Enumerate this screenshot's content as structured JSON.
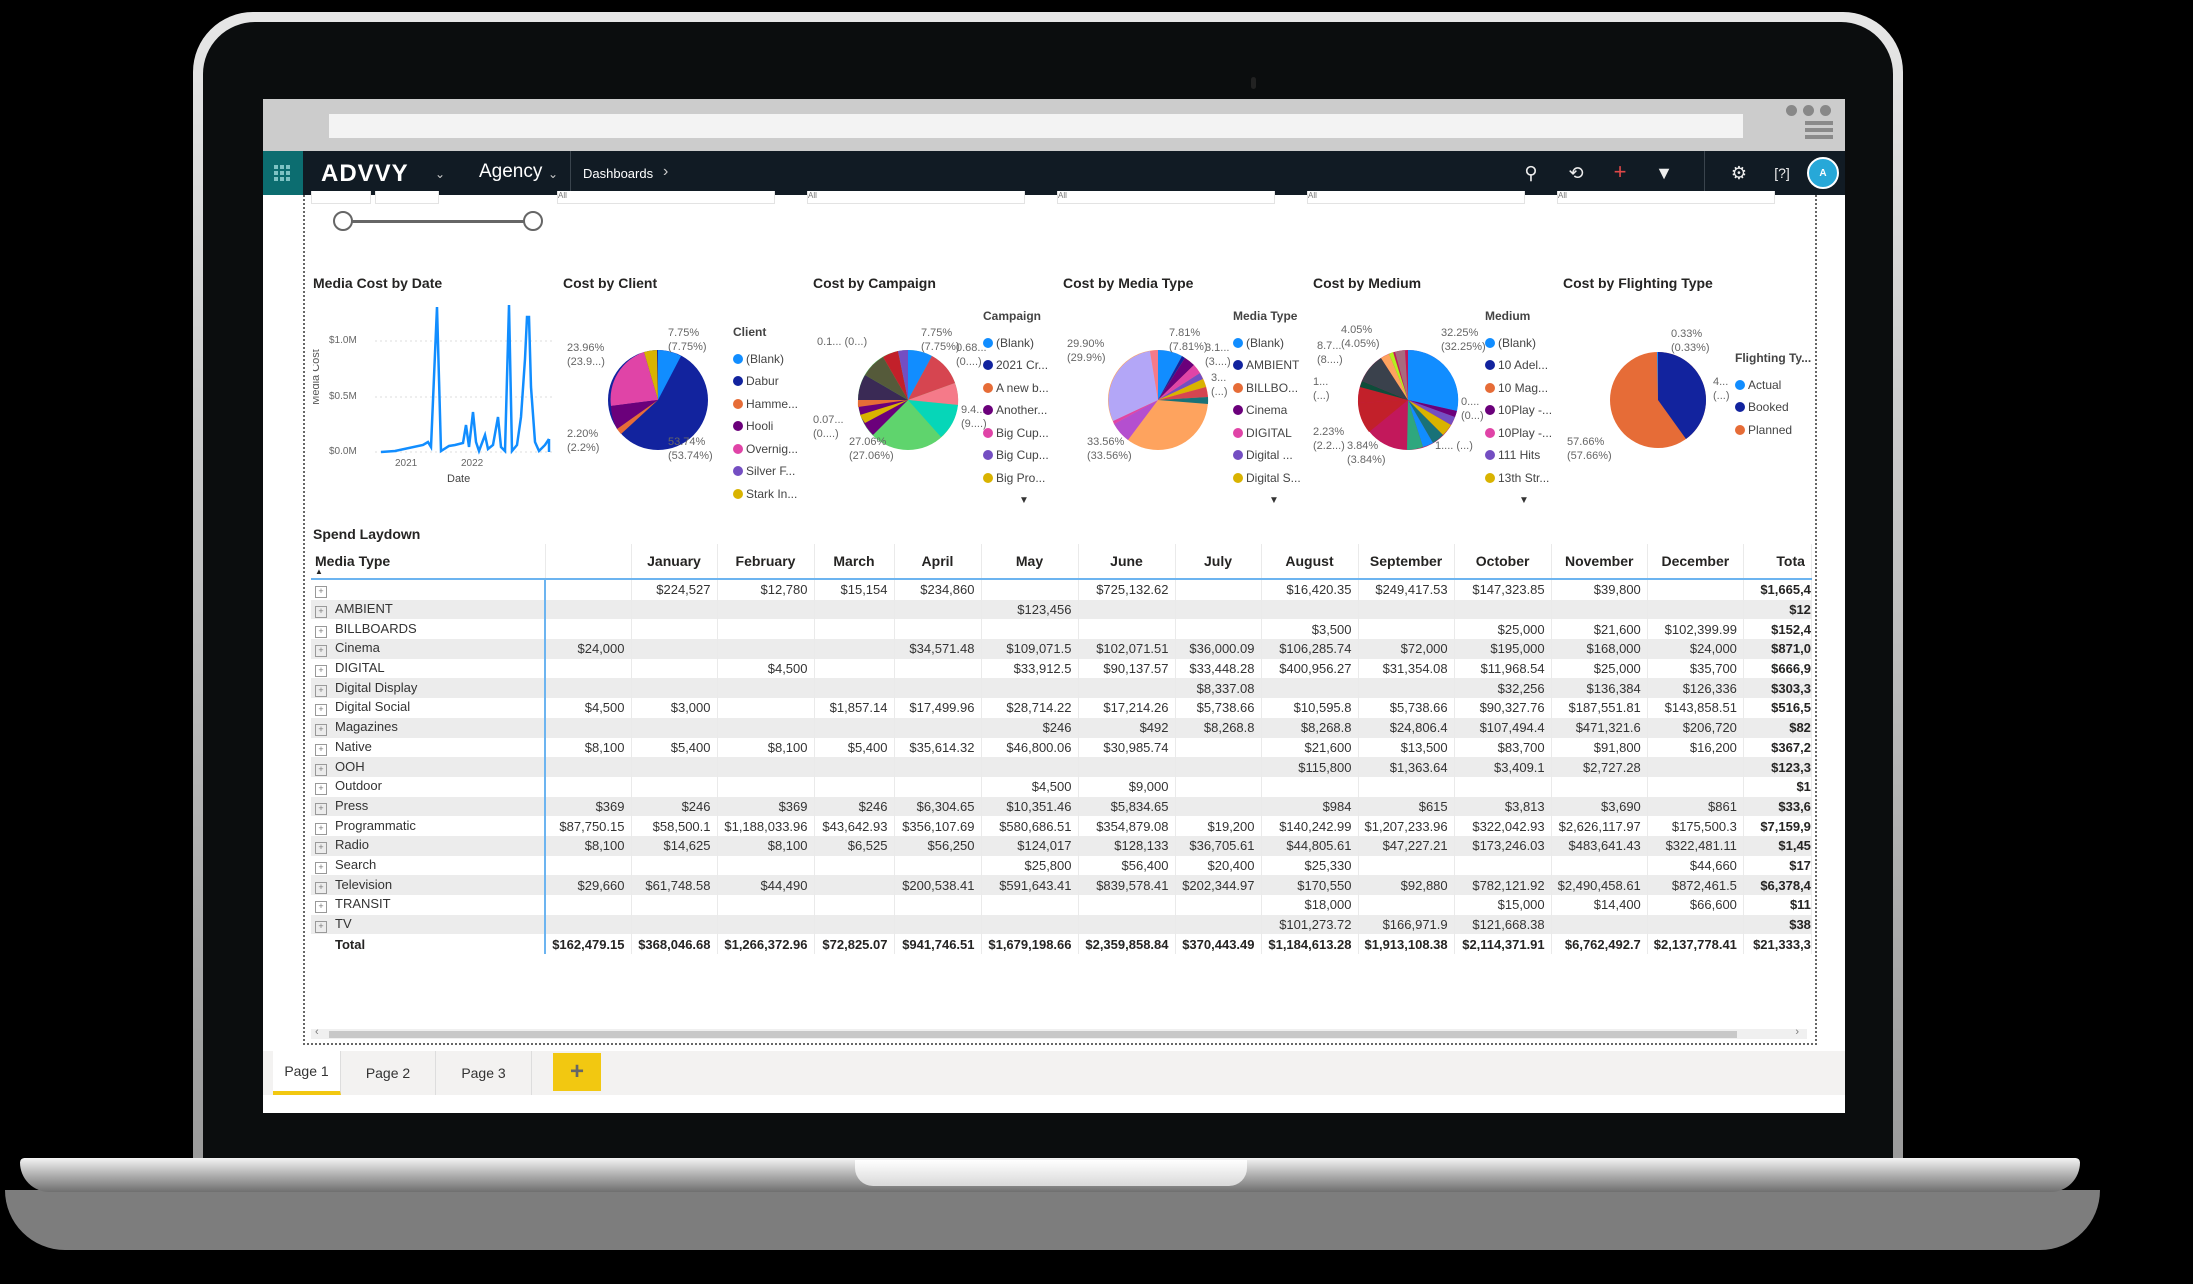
{
  "app": {
    "brand": "ADVVY",
    "org": "Agency",
    "breadcrumb": "Dashboards",
    "icons": [
      "search-icon",
      "history-icon",
      "add-icon",
      "filter-icon",
      "settings-icon",
      "help-icon"
    ],
    "avatar_initial": "A",
    "accent": "#0c6d70",
    "tab_accent": "#f2c811"
  },
  "slicers": {
    "placeholder": "All"
  },
  "charts": {
    "line": {
      "title": "Media Cost by Date"
    },
    "client": {
      "title": "Cost by Client",
      "legend_title": "Client"
    },
    "campaign": {
      "title": "Cost by Campaign",
      "legend_title": "Campaign"
    },
    "mediatype": {
      "title": "Cost by Media Type",
      "legend_title": "Media Type"
    },
    "medium": {
      "title": "Cost by Medium",
      "legend_title": "Medium"
    },
    "flighting": {
      "title": "Cost by Flighting Type",
      "legend_title": "Flighting Ty..."
    }
  },
  "chart_data": [
    {
      "type": "line",
      "title": "Media Cost by Date",
      "xlabel": "Date",
      "ylabel": "Media Cost",
      "y_ticks": [
        "$0.0M",
        "$0.5M",
        "$1.0M"
      ],
      "x_ticks": [
        "2021",
        "2022"
      ],
      "ylim": [
        0,
        1.4
      ],
      "grid": true,
      "series": [
        {
          "name": "Media Cost",
          "color": "#118dff",
          "points_approx_millions": [
            0.01,
            0.02,
            0.05,
            0.1,
            1.25,
            0.02,
            0.05,
            0.05,
            0.35,
            0.05,
            0.1,
            0.3,
            1.35,
            0.02,
            1.3,
            0.6,
            0.05,
            0.02,
            0.1,
            0.2,
            0.35,
            0.2,
            0.05,
            0.02,
            0.05,
            0.22,
            0.05,
            0.01
          ]
        }
      ]
    },
    {
      "type": "pie",
      "title": "Cost by Client",
      "legend": [
        "(Blank)",
        "Dabur",
        "Hamme...",
        "Hooli",
        "Overnig...",
        "Silver F...",
        "Stark In..."
      ],
      "colors": [
        "#118dff",
        "#12239e",
        "#e66c37",
        "#6b007b",
        "#e044a7",
        "#744ec2",
        "#d9b300"
      ],
      "values": [
        7.75,
        53.74,
        2.2,
        10.0,
        23.96,
        0.2,
        2.15
      ],
      "labels": [
        {
          "text": "7.75%",
          "sub": "(7.75%)"
        },
        {
          "text": "23.96%",
          "sub": "(23.9...)"
        },
        {
          "text": "2.20%",
          "sub": "(2.2%)"
        },
        {
          "text": "53.74%",
          "sub": "(53.74%)"
        }
      ]
    },
    {
      "type": "pie",
      "title": "Cost by Campaign",
      "legend": [
        "(Blank)",
        "2021 Cr...",
        "A new b...",
        "Another...",
        "Big Cup...",
        "Big Cup...",
        "Big Pro..."
      ],
      "colors": [
        "#118dff",
        "#12239e",
        "#e66c37",
        "#6b007b",
        "#e044a7",
        "#744ec2",
        "#d9b300"
      ],
      "values": [
        7.75,
        0.68,
        9.4,
        27.06,
        0.07,
        0.1
      ],
      "labels": [
        {
          "text": "0.1... (0...)"
        },
        {
          "text": "7.75%",
          "sub": "(7.75%)"
        },
        {
          "text": "0.68...",
          "sub": "(0....)"
        },
        {
          "text": "9.4...",
          "sub": "(9....)"
        },
        {
          "text": "0.07...",
          "sub": "(0....)"
        },
        {
          "text": "27.06%",
          "sub": "(27.06%)"
        }
      ]
    },
    {
      "type": "pie",
      "title": "Cost by Media Type",
      "legend": [
        "(Blank)",
        "AMBIENT",
        "BILLBO...",
        "Cinema",
        "DIGITAL",
        "Digital ...",
        "Digital S..."
      ],
      "colors": [
        "#118dff",
        "#12239e",
        "#e66c37",
        "#6b007b",
        "#e044a7",
        "#744ec2",
        "#d9b300"
      ],
      "values": [
        7.81,
        0.6,
        0.7,
        4.1,
        3.1,
        1.4,
        2.4,
        3.0,
        1.5,
        33.56,
        6.5,
        0.9,
        29.9,
        2.0
      ],
      "labels": [
        {
          "text": "29.90%",
          "sub": "(29.9%)"
        },
        {
          "text": "7.81%",
          "sub": "(7.81%)"
        },
        {
          "text": "3.1...",
          "sub": "(3....)"
        },
        {
          "text": "3...",
          "sub": "(...)"
        },
        {
          "text": "33.56%",
          "sub": "(33.56%)"
        }
      ]
    },
    {
      "type": "pie",
      "title": "Cost by Medium",
      "legend": [
        "(Blank)",
        "10 Adel...",
        "10 Mag...",
        "10Play -...",
        "10Play -...",
        "111 Hits",
        "13th Str..."
      ],
      "colors": [
        "#118dff",
        "#12239e",
        "#e66c37",
        "#6b007b",
        "#e044a7",
        "#744ec2",
        "#d9b300"
      ],
      "values": [
        32.25,
        4.05,
        8.7,
        10.0,
        2.23,
        3.84
      ],
      "labels": [
        {
          "text": "4.05%",
          "sub": "(4.05%)"
        },
        {
          "text": "32.25%",
          "sub": "(32.25%)"
        },
        {
          "text": "8.7...",
          "sub": "(8....)"
        },
        {
          "text": "1...",
          "sub": "(...)"
        },
        {
          "text": "0....",
          "sub": "(0...)"
        },
        {
          "text": "2.23%",
          "sub": "(2.2...)"
        },
        {
          "text": "3.84%",
          "sub": "(3.84%)"
        },
        {
          "text": "1.... (...)"
        }
      ]
    },
    {
      "type": "pie",
      "title": "Cost by Flighting Type",
      "legend": [
        "Actual",
        "Booked",
        "Planned"
      ],
      "colors": [
        "#118dff",
        "#12239e",
        "#e66c37"
      ],
      "values": [
        0.33,
        42.01,
        57.66
      ],
      "labels": [
        {
          "text": "0.33%",
          "sub": "(0.33%)"
        },
        {
          "text": "4...",
          "sub": "(...)"
        },
        {
          "text": "57.66%",
          "sub": "(57.66%)"
        }
      ]
    },
    {
      "type": "table",
      "title": "Spend Laydown"
    }
  ],
  "table": {
    "title": "Spend Laydown",
    "row_header": "Media Type",
    "columns": [
      "",
      "January",
      "February",
      "March",
      "April",
      "May",
      "June",
      "July",
      "August",
      "September",
      "October",
      "November",
      "December",
      "Tota"
    ],
    "rows": [
      {
        "name": "",
        "cells": [
          "",
          "$224,527",
          "$12,780",
          "$15,154",
          "$234,860",
          "",
          "$725,132.62",
          "",
          "$16,420.35",
          "$249,417.53",
          "$147,323.85",
          "$39,800",
          "",
          "$1,665,4"
        ]
      },
      {
        "name": "AMBIENT",
        "cells": [
          "",
          "",
          "",
          "",
          "",
          "$123,456",
          "",
          "",
          "",
          "",
          "",
          "",
          "",
          "$12"
        ]
      },
      {
        "name": "BILLBOARDS",
        "cells": [
          "",
          "",
          "",
          "",
          "",
          "",
          "",
          "",
          "$3,500",
          "",
          "$25,000",
          "$21,600",
          "$102,399.99",
          "$152,4"
        ]
      },
      {
        "name": "Cinema",
        "cells": [
          "$24,000",
          "",
          "",
          "",
          "$34,571.48",
          "$109,071.5",
          "$102,071.51",
          "$36,000.09",
          "$106,285.74",
          "$72,000",
          "$195,000",
          "$168,000",
          "$24,000",
          "$871,0"
        ]
      },
      {
        "name": "DIGITAL",
        "cells": [
          "",
          "",
          "$4,500",
          "",
          "",
          "$33,912.5",
          "$90,137.57",
          "$33,448.28",
          "$400,956.27",
          "$31,354.08",
          "$11,968.54",
          "$25,000",
          "$35,700",
          "$666,9"
        ]
      },
      {
        "name": "Digital Display",
        "cells": [
          "",
          "",
          "",
          "",
          "",
          "",
          "",
          "$8,337.08",
          "",
          "",
          "$32,256",
          "$136,384",
          "$126,336",
          "$303,3"
        ]
      },
      {
        "name": "Digital Social",
        "cells": [
          "$4,500",
          "$3,000",
          "",
          "$1,857.14",
          "$17,499.96",
          "$28,714.22",
          "$17,214.26",
          "$5,738.66",
          "$10,595.8",
          "$5,738.66",
          "$90,327.76",
          "$187,551.81",
          "$143,858.51",
          "$516,5"
        ]
      },
      {
        "name": "Magazines",
        "cells": [
          "",
          "",
          "",
          "",
          "",
          "$246",
          "$492",
          "$8,268.8",
          "$8,268.8",
          "$24,806.4",
          "$107,494.4",
          "$471,321.6",
          "$206,720",
          "$82"
        ]
      },
      {
        "name": "Native",
        "cells": [
          "$8,100",
          "$5,400",
          "$8,100",
          "$5,400",
          "$35,614.32",
          "$46,800.06",
          "$30,985.74",
          "",
          "$21,600",
          "$13,500",
          "$83,700",
          "$91,800",
          "$16,200",
          "$367,2"
        ]
      },
      {
        "name": "OOH",
        "cells": [
          "",
          "",
          "",
          "",
          "",
          "",
          "",
          "",
          "$115,800",
          "$1,363.64",
          "$3,409.1",
          "$2,727.28",
          "",
          "$123,3"
        ]
      },
      {
        "name": "Outdoor",
        "cells": [
          "",
          "",
          "",
          "",
          "",
          "$4,500",
          "$9,000",
          "",
          "",
          "",
          "",
          "",
          "",
          "$1"
        ]
      },
      {
        "name": "Press",
        "cells": [
          "$369",
          "$246",
          "$369",
          "$246",
          "$6,304.65",
          "$10,351.46",
          "$5,834.65",
          "",
          "$984",
          "$615",
          "$3,813",
          "$3,690",
          "$861",
          "$33,6"
        ]
      },
      {
        "name": "Programmatic",
        "cells": [
          "$87,750.15",
          "$58,500.1",
          "$1,188,033.96",
          "$43,642.93",
          "$356,107.69",
          "$580,686.51",
          "$354,879.08",
          "$19,200",
          "$140,242.99",
          "$1,207,233.96",
          "$322,042.93",
          "$2,626,117.97",
          "$175,500.3",
          "$7,159,9"
        ]
      },
      {
        "name": "Radio",
        "cells": [
          "$8,100",
          "$14,625",
          "$8,100",
          "$6,525",
          "$56,250",
          "$124,017",
          "$128,133",
          "$36,705.61",
          "$44,805.61",
          "$47,227.21",
          "$173,246.03",
          "$483,641.43",
          "$322,481.11",
          "$1,45"
        ]
      },
      {
        "name": "Search",
        "cells": [
          "",
          "",
          "",
          "",
          "",
          "$25,800",
          "$56,400",
          "$20,400",
          "$25,330",
          "",
          "",
          "",
          "$44,660",
          "$17"
        ]
      },
      {
        "name": "Television",
        "cells": [
          "$29,660",
          "$61,748.58",
          "$44,490",
          "",
          "$200,538.41",
          "$591,643.41",
          "$839,578.41",
          "$202,344.97",
          "$170,550",
          "$92,880",
          "$782,121.92",
          "$2,490,458.61",
          "$872,461.5",
          "$6,378,4"
        ]
      },
      {
        "name": "TRANSIT",
        "cells": [
          "",
          "",
          "",
          "",
          "",
          "",
          "",
          "",
          "$18,000",
          "",
          "$15,000",
          "$14,400",
          "$66,600",
          "$11"
        ]
      },
      {
        "name": "TV",
        "cells": [
          "",
          "",
          "",
          "",
          "",
          "",
          "",
          "",
          "$101,273.72",
          "$166,971.9",
          "$121,668.38",
          "",
          "",
          "$38"
        ]
      }
    ],
    "total": {
      "name": "Total",
      "cells": [
        "$162,479.15",
        "$368,046.68",
        "$1,266,372.96",
        "$72,825.07",
        "$941,746.51",
        "$1,679,198.66",
        "$2,359,858.84",
        "$370,443.49",
        "$1,184,613.28",
        "$1,913,108.38",
        "$2,114,371.91",
        "$6,762,492.7",
        "$2,137,778.41",
        "$21,333,3"
      ]
    }
  },
  "pages": {
    "tabs": [
      "Page 1",
      "Page 2",
      "Page 3"
    ],
    "active": "Page 1",
    "add": "+"
  }
}
